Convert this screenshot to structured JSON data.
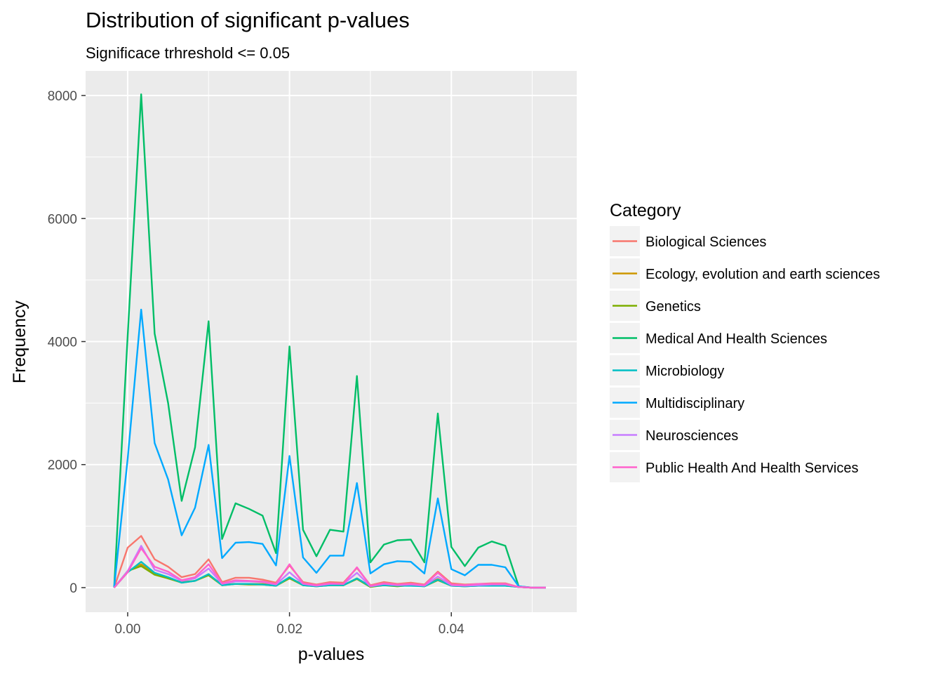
{
  "chart_data": {
    "type": "line",
    "title": "Distribution of significant p-values",
    "subtitle": "Significace trhreshold <= 0.05",
    "xlabel": "p-values",
    "ylabel": "Frequency",
    "xlim": [
      -0.0052,
      0.0555
    ],
    "ylim": [
      -400,
      8400
    ],
    "x_ticks": [
      0.0,
      0.02,
      0.04
    ],
    "x_tick_labels": [
      "0.00",
      "0.02",
      "0.04"
    ],
    "y_ticks": [
      0,
      2000,
      4000,
      6000,
      8000
    ],
    "y_tick_labels": [
      "0",
      "2000",
      "4000",
      "6000",
      "8000"
    ],
    "grid": true,
    "legend_title": "Category",
    "legend_position": "right",
    "x": [
      -0.00167,
      0.0,
      0.00167,
      0.00333,
      0.005,
      0.00667,
      0.00833,
      0.01,
      0.01167,
      0.01333,
      0.015,
      0.01667,
      0.01833,
      0.02,
      0.02167,
      0.02333,
      0.025,
      0.02667,
      0.02833,
      0.03,
      0.03167,
      0.03333,
      0.035,
      0.03667,
      0.03833,
      0.04,
      0.04167,
      0.04333,
      0.045,
      0.04667,
      0.04833,
      0.05,
      0.05167
    ],
    "series": [
      {
        "name": "Biological Sciences",
        "color": "#F8766D",
        "values": [
          0,
          650,
          840,
          460,
          340,
          170,
          220,
          460,
          90,
          160,
          160,
          130,
          80,
          360,
          90,
          50,
          90,
          80,
          320,
          40,
          90,
          60,
          80,
          50,
          260,
          70,
          50,
          60,
          70,
          70,
          10,
          0,
          0
        ]
      },
      {
        "name": "Ecology, evolution and earth sciences",
        "color": "#CD9600",
        "values": [
          0,
          260,
          380,
          230,
          150,
          90,
          110,
          210,
          50,
          60,
          60,
          60,
          40,
          160,
          50,
          30,
          50,
          40,
          150,
          20,
          50,
          30,
          40,
          30,
          140,
          40,
          30,
          40,
          40,
          40,
          10,
          0,
          0
        ]
      },
      {
        "name": "Genetics",
        "color": "#7CAE00",
        "values": [
          0,
          270,
          350,
          210,
          150,
          80,
          110,
          200,
          40,
          60,
          50,
          50,
          30,
          150,
          40,
          20,
          40,
          40,
          140,
          10,
          40,
          20,
          40,
          20,
          120,
          30,
          20,
          30,
          30,
          30,
          10,
          0,
          0
        ]
      },
      {
        "name": "Medical And Health Sciences",
        "color": "#00BE67",
        "values": [
          0,
          4100,
          8020,
          4130,
          3000,
          1410,
          2280,
          4330,
          790,
          1370,
          1280,
          1170,
          560,
          3920,
          940,
          510,
          940,
          910,
          3440,
          410,
          700,
          770,
          780,
          410,
          2830,
          660,
          350,
          650,
          750,
          680,
          20,
          0,
          0
        ]
      },
      {
        "name": "Microbiology",
        "color": "#00BFC4",
        "values": [
          0,
          250,
          420,
          240,
          170,
          80,
          110,
          220,
          40,
          60,
          60,
          50,
          30,
          170,
          40,
          20,
          40,
          40,
          150,
          20,
          40,
          30,
          30,
          20,
          130,
          30,
          20,
          30,
          30,
          30,
          10,
          0,
          0
        ]
      },
      {
        "name": "Multidisciplinary",
        "color": "#00A9FF",
        "values": [
          0,
          2100,
          4520,
          2350,
          1760,
          850,
          1300,
          2320,
          480,
          730,
          740,
          710,
          360,
          2140,
          490,
          240,
          520,
          520,
          1700,
          230,
          380,
          430,
          420,
          230,
          1450,
          300,
          200,
          370,
          370,
          330,
          20,
          0,
          0
        ]
      },
      {
        "name": "Neurosciences",
        "color": "#C77CFF",
        "values": [
          0,
          270,
          680,
          290,
          220,
          110,
          150,
          310,
          60,
          100,
          100,
          90,
          50,
          250,
          60,
          30,
          60,
          60,
          240,
          20,
          60,
          40,
          50,
          30,
          180,
          40,
          30,
          40,
          50,
          50,
          10,
          0,
          0
        ]
      },
      {
        "name": "Public Health And Health Services",
        "color": "#FF61CC",
        "values": [
          0,
          250,
          640,
          340,
          260,
          120,
          170,
          380,
          70,
          120,
          110,
          100,
          60,
          380,
          70,
          40,
          70,
          60,
          330,
          30,
          70,
          50,
          60,
          40,
          240,
          50,
          40,
          60,
          60,
          60,
          10,
          0,
          0
        ]
      }
    ]
  }
}
